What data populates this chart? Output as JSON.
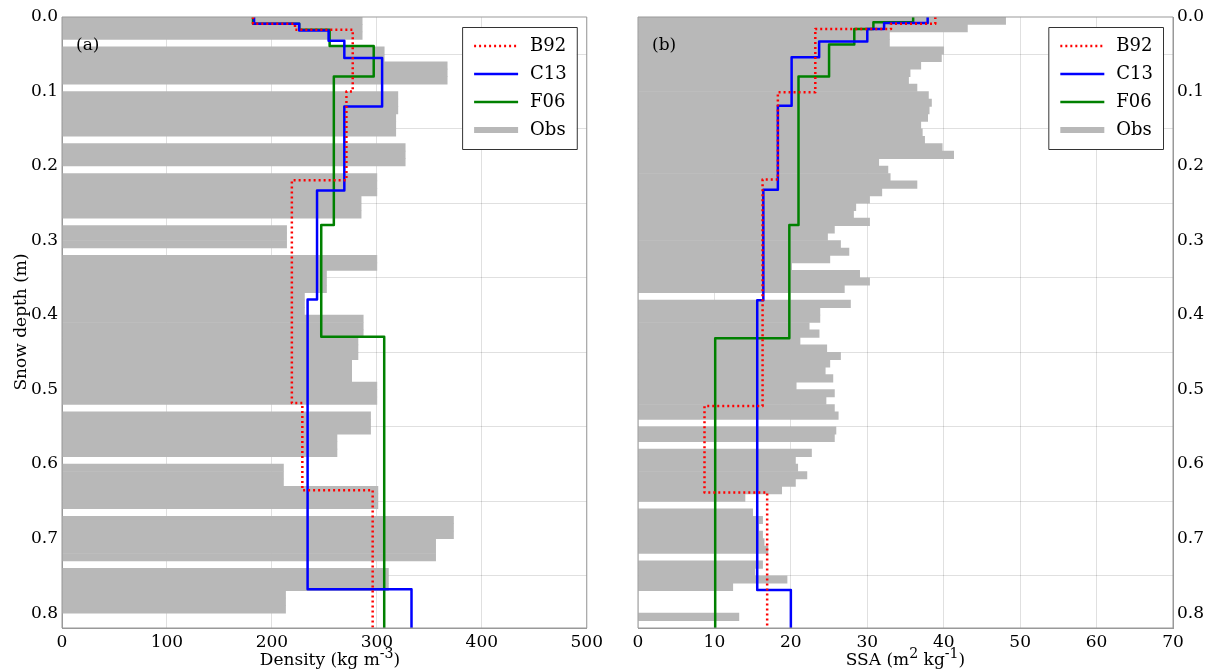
{
  "chart_data": [
    {
      "type": "step",
      "orientation": "horizontal",
      "xlabel": "Density (kg m$^{-3}$)",
      "ylabel": "Snow depth (m)",
      "annotations": [
        "(a)"
      ],
      "xlim": [
        0,
        500
      ],
      "xticks": [
        0,
        100,
        200,
        300,
        400,
        500
      ],
      "ylim": [
        0.82,
        0
      ],
      "yticks": [
        {
          "value": 0,
          "label": "0.0"
        },
        {
          "value": 0.1,
          "label": "0.1"
        },
        {
          "value": 0.2,
          "label": "0.2"
        },
        {
          "value": 0.3,
          "label": "0.3"
        },
        {
          "value": 0.4,
          "label": "0.4"
        },
        {
          "value": 0.5,
          "label": "0.5"
        },
        {
          "value": 0.6,
          "label": "0.6"
        },
        {
          "value": 0.7,
          "label": "0.7"
        },
        {
          "value": 0.8,
          "label": "0.8"
        }
      ],
      "grid": true,
      "legend": "top right",
      "marker": "none",
      "series": [
        {
          "name": "B92",
          "color": "#ff0000",
          "line_style": "dotted",
          "x": [
            0,
            0.009,
            0.017,
            0.1,
            0.219,
            0.518,
            0.635,
            0.82
          ],
          "values": [
            182,
            222,
            277,
            271,
            219,
            229,
            296,
            296
          ]
        },
        {
          "name": "C13",
          "color": "#0000ff",
          "line_style": "solid",
          "x": [
            0,
            0.009,
            0.018,
            0.032,
            0.055,
            0.12,
            0.233,
            0.379,
            0.768,
            0.82
          ],
          "values": [
            183,
            226,
            254,
            269,
            305,
            269,
            243,
            234,
            333,
            333
          ]
        },
        {
          "name": "F06",
          "color": "#008000",
          "line_style": "solid",
          "x": [
            0,
            0.009,
            0.017,
            0.039,
            0.08,
            0.279,
            0.429,
            0.82
          ],
          "values": [
            182,
            226,
            255,
            297,
            259,
            247,
            307,
            307
          ]
        },
        {
          "name": "Obs",
          "type": "bar",
          "color": "#b8b8b8",
          "x": [
            0.005,
            0.015,
            0.025,
            0.035,
            0.045,
            0.055,
            0.065,
            0.075,
            0.085,
            0.095,
            0.105,
            0.115,
            0.125,
            0.135,
            0.145,
            0.155,
            0.165,
            0.175,
            0.185,
            0.195,
            0.205,
            0.215,
            0.225,
            0.235,
            0.245,
            0.255,
            0.265,
            0.275,
            0.285,
            0.295,
            0.305,
            0.315,
            0.325,
            0.335,
            0.345,
            0.355,
            0.365,
            0.375,
            0.385,
            0.395,
            0.405,
            0.415,
            0.425,
            0.435,
            0.445,
            0.455,
            0.465,
            0.475,
            0.485,
            0.495,
            0.505,
            0.515,
            0.525,
            0.535,
            0.545,
            0.555,
            0.565,
            0.575,
            0.585,
            0.595,
            0.605,
            0.615,
            0.625,
            0.635,
            0.645,
            0.655,
            0.665,
            0.675,
            0.685,
            0.695,
            0.705,
            0.715,
            0.725,
            0.735,
            0.745,
            0.755,
            0.765,
            0.775,
            0.785,
            0.795
          ],
          "values": [
            286,
            286,
            286,
            null,
            307,
            307,
            367,
            367,
            367,
            null,
            320,
            320,
            320,
            318,
            318,
            318,
            null,
            327,
            327,
            327,
            null,
            300,
            300,
            300,
            285,
            285,
            285,
            null,
            214,
            214,
            214,
            null,
            300,
            300,
            252,
            252,
            252,
            231,
            231,
            231,
            287,
            287,
            287,
            282,
            282,
            282,
            276,
            276,
            276,
            300,
            300,
            300,
            null,
            294,
            294,
            294,
            262,
            262,
            262,
            null,
            211,
            211,
            211,
            301,
            301,
            301,
            null,
            373,
            373,
            373,
            356,
            356,
            356,
            null,
            311,
            311,
            311,
            213,
            213,
            213
          ]
        }
      ]
    },
    {
      "type": "step",
      "orientation": "horizontal",
      "xlabel": "SSA (m$^{2}$ kg$^{-1}$)",
      "annotations": [
        "(b)"
      ],
      "xlim": [
        0,
        70
      ],
      "xticks": [
        0,
        10,
        20,
        30,
        40,
        50,
        60,
        70
      ],
      "ylim": [
        0.82,
        0
      ],
      "yticks": [
        {
          "value": 0,
          "label": "0.0"
        },
        {
          "value": 0.1,
          "label": "0.1"
        },
        {
          "value": 0.2,
          "label": "0.2"
        },
        {
          "value": 0.3,
          "label": "0.3"
        },
        {
          "value": 0.4,
          "label": "0.4"
        },
        {
          "value": 0.5,
          "label": "0.5"
        },
        {
          "value": 0.6,
          "label": "0.6"
        },
        {
          "value": 0.7,
          "label": "0.7"
        },
        {
          "value": 0.8,
          "label": "0.8"
        }
      ],
      "grid": true,
      "legend": "top right",
      "marker": "none",
      "series": [
        {
          "name": "B92",
          "color": "#ff0000",
          "line_style": "dotted",
          "x": [
            0,
            0.009,
            0.016,
            0.101,
            0.218,
            0.522,
            0.638,
            0.82
          ],
          "values": [
            38.9,
            33.1,
            23.2,
            18.3,
            16.3,
            8.7,
            16.9,
            16.9
          ]
        },
        {
          "name": "C13",
          "color": "#0000ff",
          "line_style": "solid",
          "x": [
            0,
            0.008,
            0.016,
            0.033,
            0.054,
            0.119,
            0.232,
            0.38,
            0.769,
            0.82
          ],
          "values": [
            37.9,
            32.2,
            30,
            23.7,
            20.1,
            18.3,
            16.4,
            15.6,
            20,
            20
          ]
        },
        {
          "name": "F06",
          "color": "#008000",
          "line_style": "solid",
          "x": [
            0,
            0.007,
            0.016,
            0.037,
            0.08,
            0.279,
            0.431,
            0.82
          ],
          "values": [
            36,
            30.8,
            28.3,
            25,
            21,
            19.8,
            10.1,
            10.1
          ]
        },
        {
          "name": "Obs",
          "type": "bar",
          "color": "#b8b8b8",
          "x": [
            0.005,
            0.015,
            0.025,
            0.035,
            0.045,
            0.055,
            0.065,
            0.075,
            0.085,
            0.095,
            0.105,
            0.115,
            0.125,
            0.135,
            0.145,
            0.155,
            0.165,
            0.175,
            0.185,
            0.195,
            0.205,
            0.215,
            0.225,
            0.235,
            0.245,
            0.255,
            0.265,
            0.275,
            0.285,
            0.295,
            0.305,
            0.315,
            0.325,
            0.335,
            0.345,
            0.355,
            0.365,
            0.375,
            0.385,
            0.395,
            0.405,
            0.415,
            0.425,
            0.435,
            0.445,
            0.455,
            0.465,
            0.475,
            0.485,
            0.495,
            0.505,
            0.515,
            0.525,
            0.535,
            0.545,
            0.555,
            0.565,
            0.575,
            0.585,
            0.595,
            0.605,
            0.615,
            0.625,
            0.635,
            0.645,
            0.655,
            0.665,
            0.675,
            0.685,
            0.695,
            0.705,
            0.715,
            0.725,
            0.735,
            0.745,
            0.755,
            0.765,
            0.775,
            0.785,
            0.795,
            0.805
          ],
          "values": [
            48.1,
            43.1,
            32.9,
            32.9,
            40,
            39.7,
            37,
            35.6,
            35.4,
            36.5,
            38,
            38.4,
            38.1,
            37.9,
            37,
            37.2,
            37.5,
            39.8,
            41.3,
            31.5,
            32.7,
            33,
            36.5,
            31.9,
            30.3,
            28.5,
            28.2,
            30.3,
            25.7,
            24.8,
            26.5,
            27.6,
            25.1,
            20.1,
            29,
            30.3,
            27,
            null,
            27.8,
            23.8,
            23.8,
            22.4,
            23.7,
            21.2,
            24.7,
            26.5,
            25.1,
            24.5,
            25.5,
            20.7,
            25.7,
            24.6,
            25.7,
            26.2,
            null,
            25.9,
            25.7,
            null,
            22.7,
            20.6,
            20.9,
            22.1,
            20.6,
            18.8,
            14,
            null,
            15,
            16.3,
            15.8,
            16.3,
            16.5,
            17,
            null,
            16.3,
            15.3,
            19.5,
            12.4,
            null,
            null,
            null,
            13.2
          ]
        }
      ]
    }
  ]
}
